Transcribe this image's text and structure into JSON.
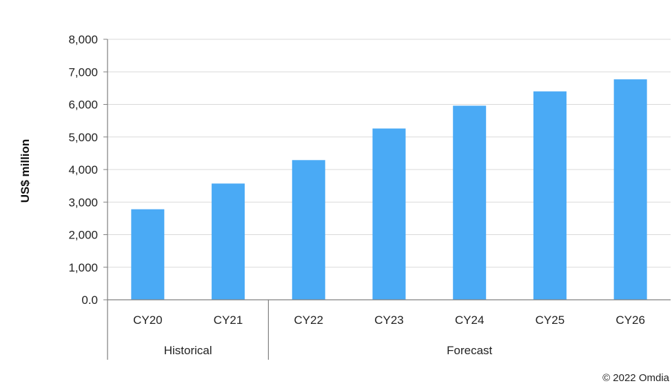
{
  "chart_data": {
    "type": "bar",
    "ylabel": "US$ million",
    "xlabel": "",
    "ylim": [
      0,
      8000
    ],
    "y_ticks": [
      "0.0",
      "1,000",
      "2,000",
      "3,000",
      "4,000",
      "5,000",
      "6,000",
      "7,000",
      "8,000"
    ],
    "y_tick_values": [
      0,
      1000,
      2000,
      3000,
      4000,
      5000,
      6000,
      7000,
      8000
    ],
    "categories": [
      "CY20",
      "CY21",
      "CY22",
      "CY23",
      "CY24",
      "CY25",
      "CY26"
    ],
    "values": [
      2780,
      3570,
      4290,
      5260,
      5960,
      6400,
      6770
    ],
    "groups": [
      {
        "label": "Historical",
        "categories": [
          "CY20",
          "CY21"
        ]
      },
      {
        "label": "Forecast",
        "categories": [
          "CY22",
          "CY23",
          "CY24",
          "CY25",
          "CY26"
        ]
      }
    ],
    "bar_color": "#4aaaf5",
    "grid": true
  },
  "footer": {
    "copyright": "© 2022 Omdia"
  }
}
